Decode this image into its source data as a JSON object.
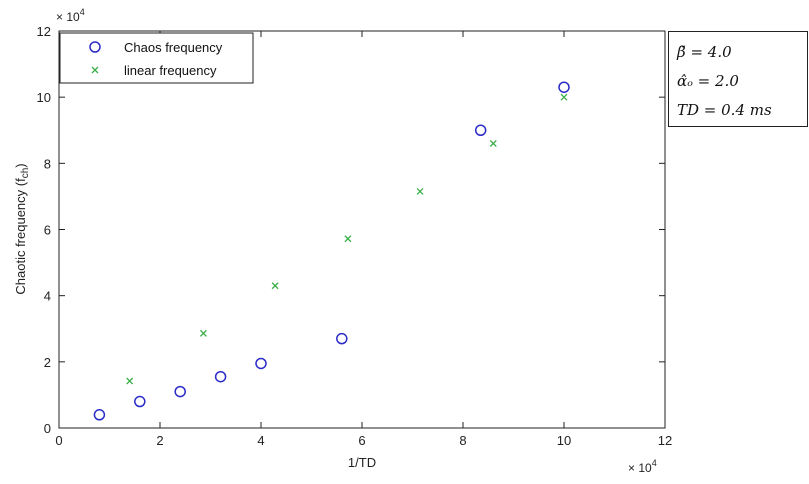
{
  "chart_data": {
    "type": "scatter",
    "xlabel": "1/TD",
    "ylabel": "Chaotic frequency (f",
    "ylabel_sub": "ch",
    "ylabel_close": ")",
    "xlim": [
      0,
      12
    ],
    "ylim": [
      0,
      12
    ],
    "x_ticks": [
      0,
      2,
      4,
      6,
      8,
      10,
      12
    ],
    "y_ticks": [
      0,
      2,
      4,
      6,
      8,
      10,
      12
    ],
    "x_exponent_base": "× 10",
    "x_exponent_power": "4",
    "y_exponent_base": "× 10",
    "y_exponent_power": "4",
    "grid": false,
    "legend_position": "top-left",
    "series": [
      {
        "name": "Chaos frequency",
        "marker": "circle",
        "color": "#2b2bc8",
        "points": [
          [
            0.8,
            0.4
          ],
          [
            1.6,
            0.8
          ],
          [
            2.4,
            1.1
          ],
          [
            3.2,
            1.55
          ],
          [
            4.0,
            1.95
          ],
          [
            5.6,
            2.7
          ],
          [
            8.35,
            9.0
          ],
          [
            10.0,
            10.3
          ]
        ]
      },
      {
        "name": "linear frequency",
        "marker": "x",
        "color": "#3cb04a",
        "points": [
          [
            1.4,
            1.42
          ],
          [
            2.86,
            2.86
          ],
          [
            4.28,
            4.3
          ],
          [
            5.72,
            5.72
          ],
          [
            7.15,
            7.15
          ],
          [
            8.6,
            8.6
          ],
          [
            10.0,
            10.0
          ]
        ]
      }
    ]
  },
  "params": {
    "beta": "β̃ = 4.0",
    "alpha": "α̂ₒ = 2.0",
    "td": "TD = 0.4 ms"
  }
}
